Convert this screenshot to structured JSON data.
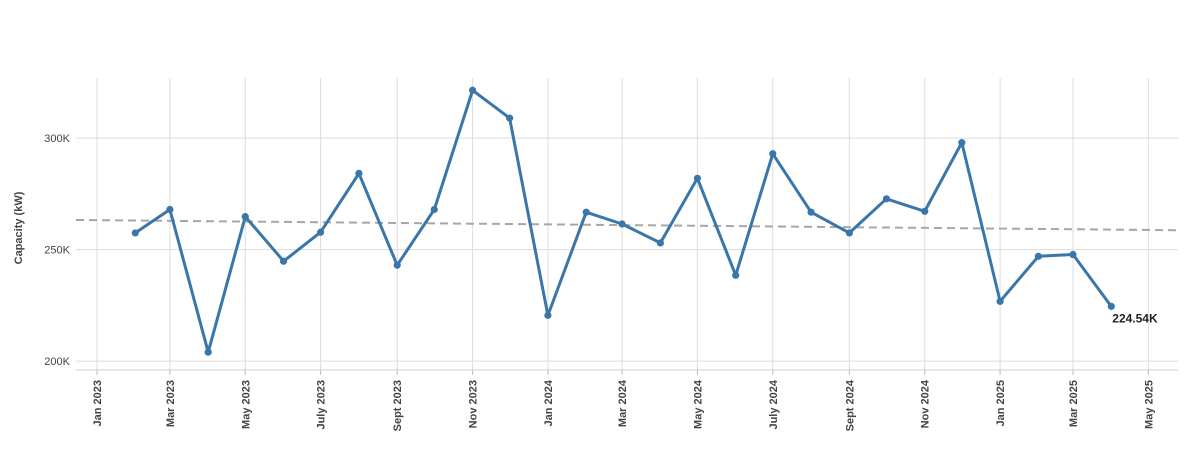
{
  "chart_data": {
    "type": "line",
    "ylabel": "Capacity (kW)",
    "xlabel": "",
    "ylim": [
      196000,
      327000
    ],
    "xlim": [
      "2022-12-15",
      "2025-05-25"
    ],
    "y_ticks": [
      {
        "value": 200000,
        "label": "200K"
      },
      {
        "value": 250000,
        "label": "250K"
      },
      {
        "value": 300000,
        "label": "300K"
      }
    ],
    "x_ticks": [
      {
        "date": "2023-01-01",
        "label": "Jan 2023"
      },
      {
        "date": "2023-03-01",
        "label": "Mar 2023"
      },
      {
        "date": "2023-05-01",
        "label": "May 2023"
      },
      {
        "date": "2023-07-01",
        "label": "July 2023"
      },
      {
        "date": "2023-09-01",
        "label": "Sept 2023"
      },
      {
        "date": "2023-11-01",
        "label": "Nov 2023"
      },
      {
        "date": "2024-01-01",
        "label": "Jan 2024"
      },
      {
        "date": "2024-03-01",
        "label": "Mar 2024"
      },
      {
        "date": "2024-05-01",
        "label": "May 2024"
      },
      {
        "date": "2024-07-01",
        "label": "July 2024"
      },
      {
        "date": "2024-09-01",
        "label": "Sept 2024"
      },
      {
        "date": "2024-11-01",
        "label": "Nov 2024"
      },
      {
        "date": "2025-01-01",
        "label": "Jan 2025"
      },
      {
        "date": "2025-03-01",
        "label": "Mar 2025"
      },
      {
        "date": "2025-05-01",
        "label": "May 2025"
      }
    ],
    "series": [
      {
        "color": "#3a76a8",
        "points": [
          {
            "x": "2023-02-01",
            "y": 257500
          },
          {
            "x": "2023-03-01",
            "y": 268000
          },
          {
            "x": "2023-04-01",
            "y": 204000
          },
          {
            "x": "2023-05-01",
            "y": 264800
          },
          {
            "x": "2023-06-01",
            "y": 244800
          },
          {
            "x": "2023-07-01",
            "y": 257800
          },
          {
            "x": "2023-08-01",
            "y": 284200
          },
          {
            "x": "2023-09-01",
            "y": 243000
          },
          {
            "x": "2023-10-01",
            "y": 268000
          },
          {
            "x": "2023-11-01",
            "y": 321500
          },
          {
            "x": "2023-12-01",
            "y": 309000
          },
          {
            "x": "2024-01-01",
            "y": 220500
          },
          {
            "x": "2024-02-01",
            "y": 266800
          },
          {
            "x": "2024-03-01",
            "y": 261500
          },
          {
            "x": "2024-04-01",
            "y": 253000
          },
          {
            "x": "2024-05-01",
            "y": 282000
          },
          {
            "x": "2024-06-01",
            "y": 238500
          },
          {
            "x": "2024-07-01",
            "y": 293000
          },
          {
            "x": "2024-08-01",
            "y": 266800
          },
          {
            "x": "2024-09-01",
            "y": 257500
          },
          {
            "x": "2024-10-01",
            "y": 272800
          },
          {
            "x": "2024-11-01",
            "y": 267200
          },
          {
            "x": "2024-12-01",
            "y": 298000
          },
          {
            "x": "2025-01-01",
            "y": 226800
          },
          {
            "x": "2025-02-01",
            "y": 247000
          },
          {
            "x": "2025-03-01",
            "y": 247800
          },
          {
            "x": "2025-04-01",
            "y": 224540
          }
        ]
      }
    ],
    "trendline": {
      "style": "dashed",
      "color": "#a6a6a6",
      "start": {
        "x": "2022-12-15",
        "y": 263300
      },
      "end": {
        "x": "2025-05-25",
        "y": 258700
      }
    },
    "last_point_label": "224.54K",
    "grid": true,
    "legend": "none"
  }
}
